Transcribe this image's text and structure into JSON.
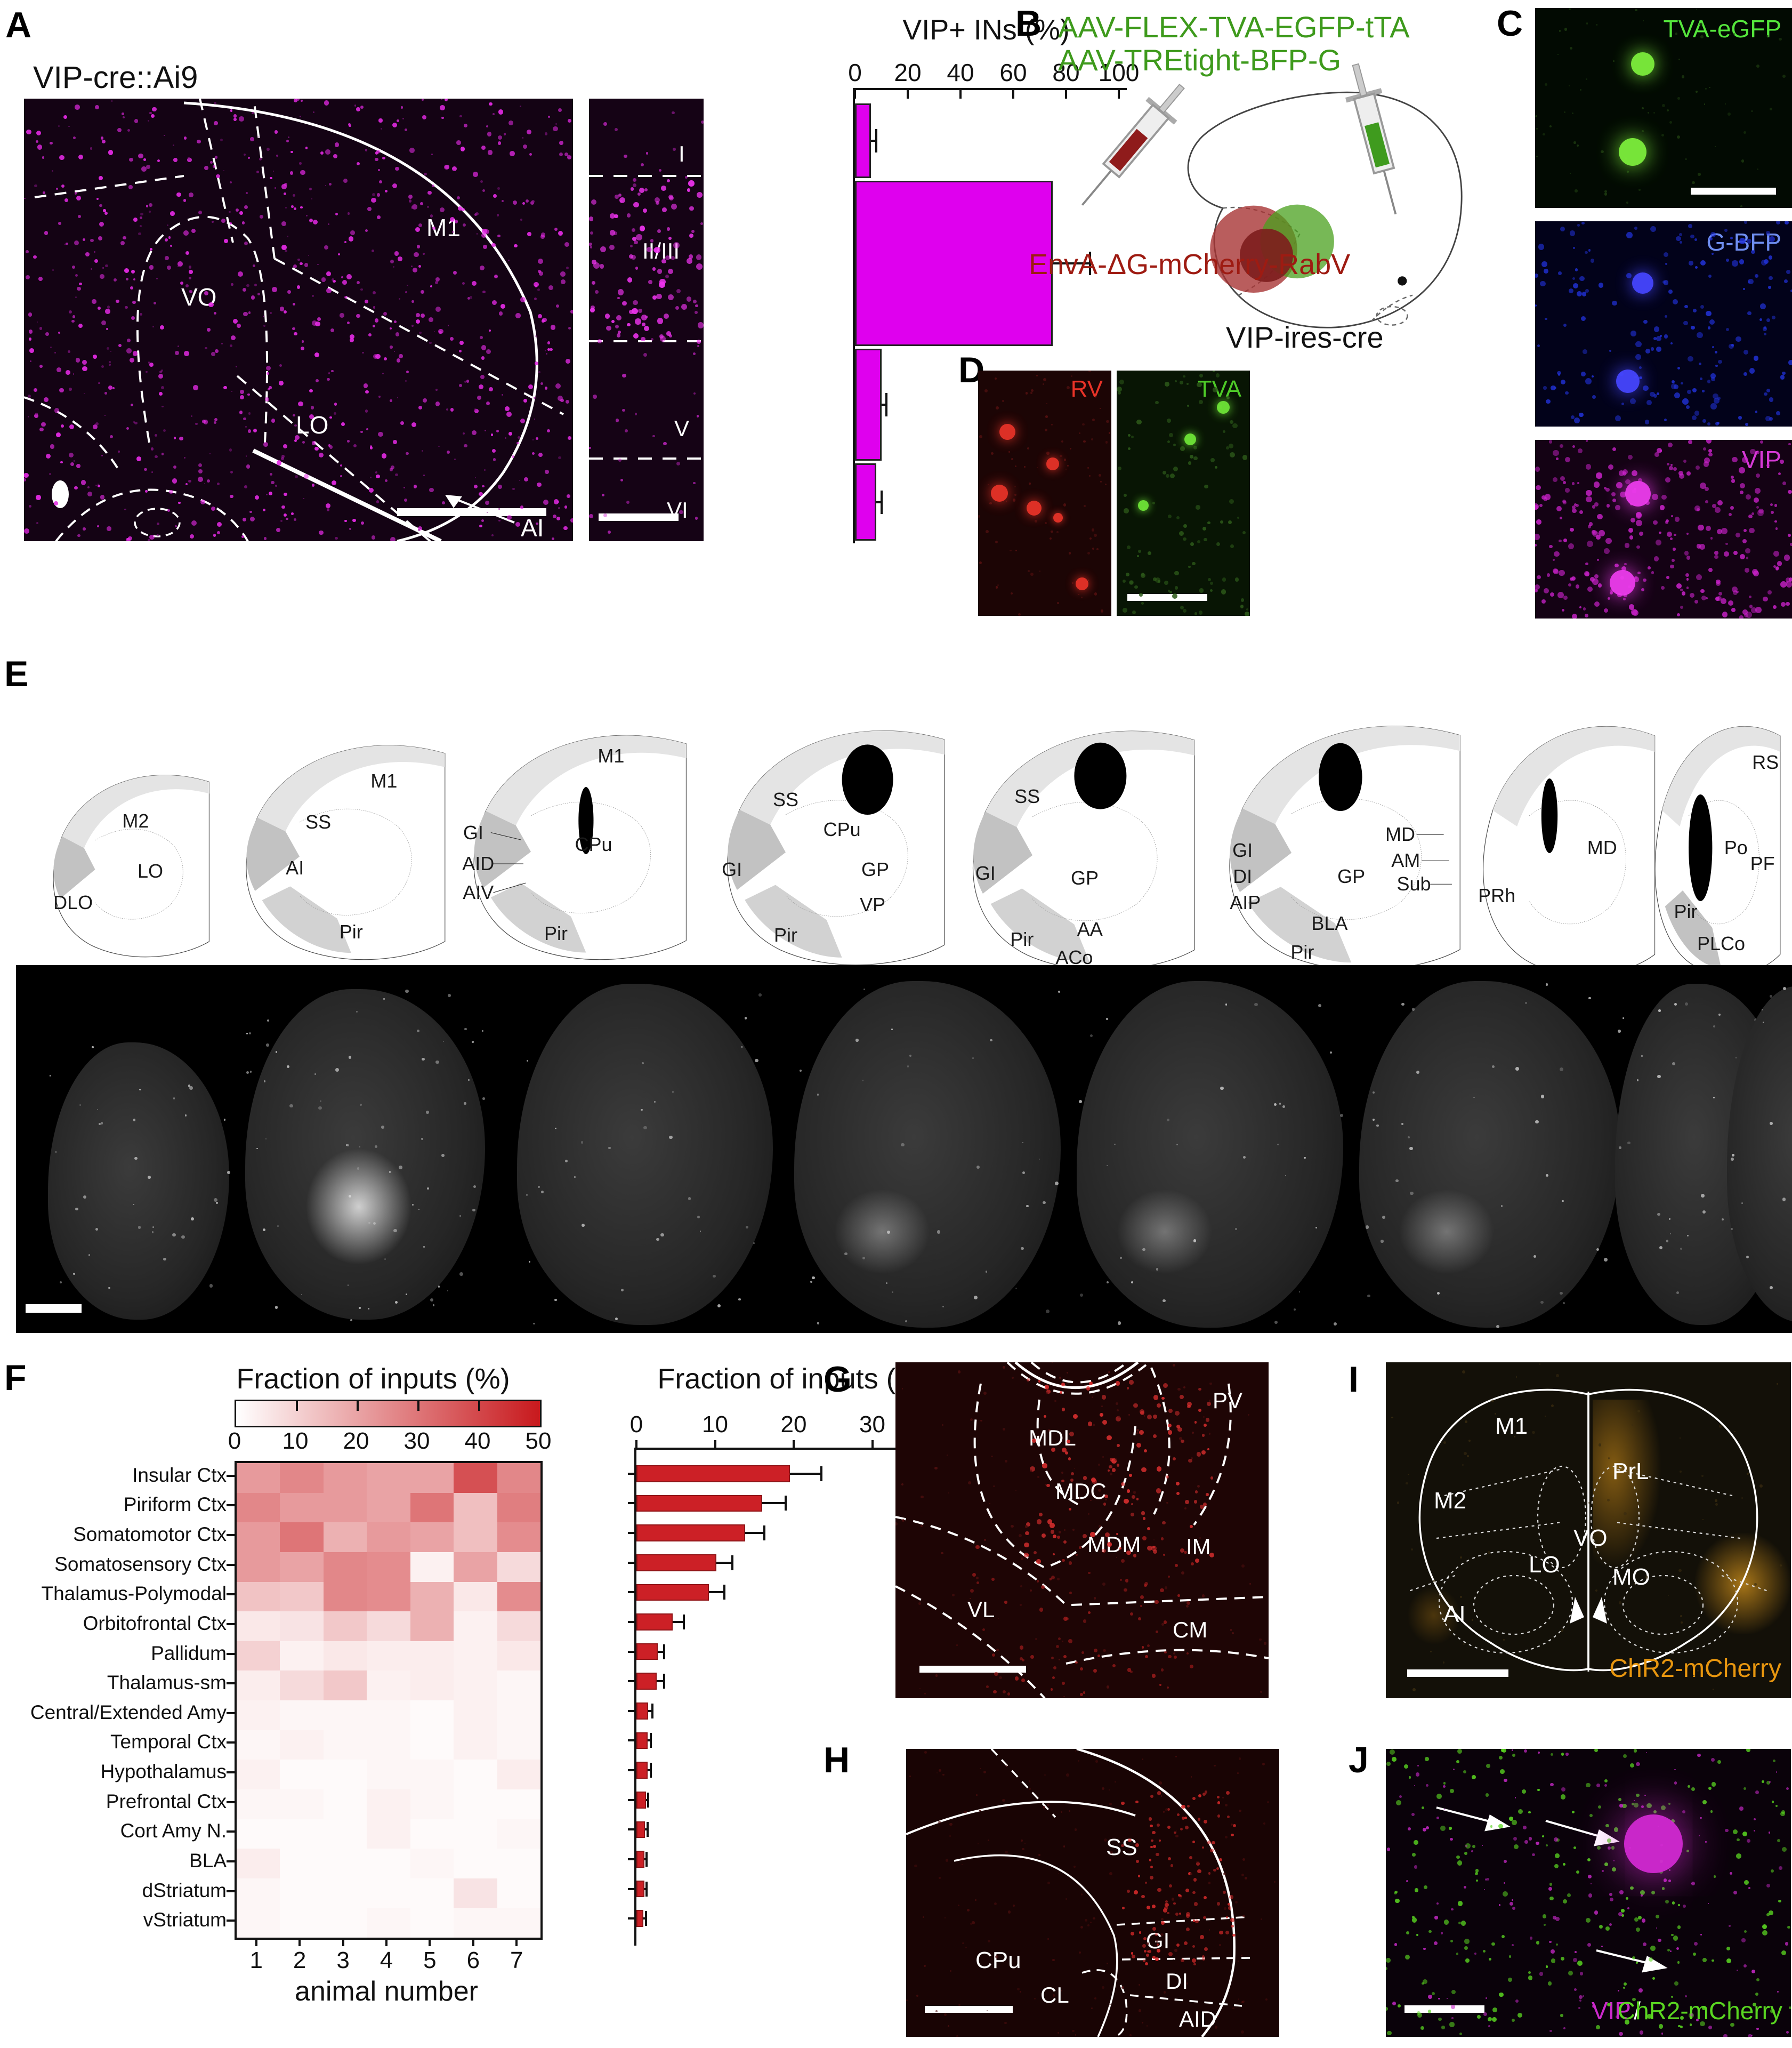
{
  "panelA": {
    "label": "A",
    "title": "VIP-cre::Ai9",
    "regions": [
      "VO",
      "M1",
      "LO",
      "AI"
    ],
    "layers": [
      "I",
      "II/III",
      "V",
      "VI"
    ],
    "dot_color": "#e52ae5"
  },
  "panelB": {
    "label": "B",
    "aav_line1": "AAV-FLEX-TVA-EGFP-tTA",
    "aav_line2": "AAV-TREtight-BFP-G",
    "rabv_line": "EnvA-ΔG-mCherry-RabV",
    "mouse_line": "VIP-ires-cre",
    "green": "#3e9a1c",
    "dark_red": "#9e1b12"
  },
  "panelC": {
    "label": "C",
    "images": [
      {
        "label": "TVA-eGFP",
        "color": "#55e63c"
      },
      {
        "label": "G-BFP",
        "color": "#6f8ef0"
      },
      {
        "label": "VIP",
        "color": "#d63ad6"
      }
    ]
  },
  "panelD": {
    "label": "D",
    "images": [
      {
        "label": "RV",
        "color": "#e83328"
      },
      {
        "label": "TVA",
        "color": "#4ecb28"
      }
    ]
  },
  "panelE": {
    "label": "E",
    "drawings": [
      {
        "labels": [
          "M2",
          "LO",
          "DLO"
        ]
      },
      {
        "labels": [
          "M1",
          "SS",
          "AI",
          "Pir"
        ]
      },
      {
        "labels": [
          "M1",
          "GI",
          "AID",
          "AIV",
          "CPu",
          "Pir"
        ]
      },
      {
        "labels": [
          "SS",
          "CPu",
          "GI",
          "GP",
          "VP",
          "Pir"
        ]
      },
      {
        "labels": [
          "SS",
          "GI",
          "GP",
          "Pir",
          "AA",
          "ACo"
        ]
      },
      {
        "labels": [
          "GI",
          "DI",
          "AIP",
          "GP",
          "MD",
          "AM",
          "Sub",
          "BLA",
          "Pir"
        ]
      },
      {
        "labels": [
          "PRh",
          "MD"
        ]
      },
      {
        "labels": [
          "RS",
          "Po",
          "PF",
          "Pir",
          "PLCo"
        ]
      }
    ]
  },
  "panelF": {
    "label": "F"
  },
  "panelG": {
    "label": "G",
    "regions": [
      "MDL",
      "MDC",
      "MDM",
      "IM",
      "PV",
      "VL",
      "CM"
    ]
  },
  "panelH": {
    "label": "H",
    "regions": [
      "CPu",
      "SS",
      "GI",
      "DI",
      "CL",
      "AID"
    ]
  },
  "panelI": {
    "label": "I",
    "regions": [
      "M1",
      "M2",
      "PrL",
      "LO",
      "VO",
      "MO",
      "AI"
    ],
    "tag": "ChR2-mCherry",
    "tag_color": "#e8960f"
  },
  "panelJ": {
    "label": "J",
    "tag_vip": "VIP",
    "tag_slash": "/",
    "tag_chr2": "ChR2-mCherry",
    "vip_color": "#cc29cc",
    "chr2_color": "#5ad621"
  },
  "chart_data": [
    {
      "id": "vip_layers",
      "type": "bar",
      "orientation": "horizontal",
      "title": "VIP+ INs (%)",
      "categories": [
        "I",
        "II/III",
        "V",
        "VI"
      ],
      "values": [
        6,
        75,
        10,
        8
      ],
      "errors": [
        2,
        14,
        2,
        2
      ],
      "xlim": [
        0,
        100
      ],
      "xticks": [
        0,
        20,
        40,
        60,
        80,
        100
      ],
      "bar_color": "#df00ee",
      "legend": "none",
      "grid": false
    },
    {
      "id": "inputs_heatmap",
      "type": "heatmap",
      "title": "Fraction of inputs (%)",
      "xlabel": "animal number",
      "columns": [
        "1",
        "2",
        "3",
        "4",
        "5",
        "6",
        "7"
      ],
      "rows": [
        "Insular Ctx",
        "Piriform Ctx",
        "Somatomotor Ctx",
        "Somatosensory Ctx",
        "Thalamus-Polymodal",
        "Orbitofrontal Ctx",
        "Pallidum",
        "Thalamus-sm",
        "Central/Extended Amy",
        "Temporal Ctx",
        "Hypothalamus",
        "Prefrontal Ctx",
        "Cort Amy N.",
        "BLA",
        "dStriatum",
        "vStriatum"
      ],
      "values": [
        [
          22,
          26,
          22,
          20,
          20,
          38,
          26
        ],
        [
          26,
          22,
          22,
          20,
          30,
          14,
          28
        ],
        [
          22,
          30,
          17,
          22,
          20,
          14,
          25
        ],
        [
          22,
          20,
          26,
          25,
          3,
          20,
          8
        ],
        [
          13,
          12,
          26,
          25,
          17,
          5,
          25
        ],
        [
          5,
          6,
          12,
          8,
          17,
          3,
          8
        ],
        [
          10,
          3,
          5,
          4,
          4,
          3,
          5
        ],
        [
          4,
          8,
          12,
          3,
          4,
          3,
          2
        ],
        [
          3,
          2,
          2,
          2,
          1,
          3,
          2
        ],
        [
          2,
          3,
          2,
          2,
          1,
          3,
          2
        ],
        [
          3,
          1,
          1,
          2,
          2,
          1,
          4
        ],
        [
          2,
          2,
          1,
          3,
          2,
          1,
          1
        ],
        [
          1,
          1,
          1,
          3,
          1,
          1,
          2
        ],
        [
          4,
          1,
          1,
          1,
          2,
          1,
          1
        ],
        [
          2,
          1,
          1,
          1,
          1,
          6,
          1
        ],
        [
          2,
          1,
          1,
          2,
          1,
          2,
          2
        ]
      ],
      "scale": {
        "min": 0,
        "max": 50,
        "ticks": [
          0,
          10,
          20,
          30,
          40,
          50
        ],
        "min_color": "#ffffff",
        "max_color": "#c8191d"
      },
      "legend": "colorbar-top"
    },
    {
      "id": "inputs_bar",
      "type": "bar",
      "orientation": "horizontal",
      "title": "Fraction of inputs (%)",
      "categories": [
        "Insular Ctx",
        "Piriform Ctx",
        "Somatomotor Ctx",
        "Somatosensory Ctx",
        "Thalamus-Polymodal",
        "Orbitofrontal Ctx",
        "Pallidum",
        "Thalamus-sm",
        "Central/Extended Amy",
        "Temporal Ctx",
        "Hypothalamus",
        "Prefrontal Ctx",
        "Cort Amy N.",
        "BLA",
        "dStriatum",
        "vStriatum"
      ],
      "values": [
        19.5,
        16,
        13.8,
        10.2,
        9.2,
        4.6,
        2.7,
        2.6,
        1.5,
        1.4,
        1.4,
        1.2,
        1.1,
        1.0,
        1.0,
        0.9
      ],
      "errors": [
        4,
        3,
        2.5,
        2,
        2,
        1.4,
        0.8,
        0.9,
        0.5,
        0.4,
        0.4,
        0.3,
        0.3,
        0.3,
        0.3,
        0.3
      ],
      "xlim": [
        0,
        40
      ],
      "xticks": [
        0,
        10,
        20,
        30,
        40
      ],
      "bar_color": "#cc2026",
      "legend": "none",
      "grid": false
    }
  ]
}
